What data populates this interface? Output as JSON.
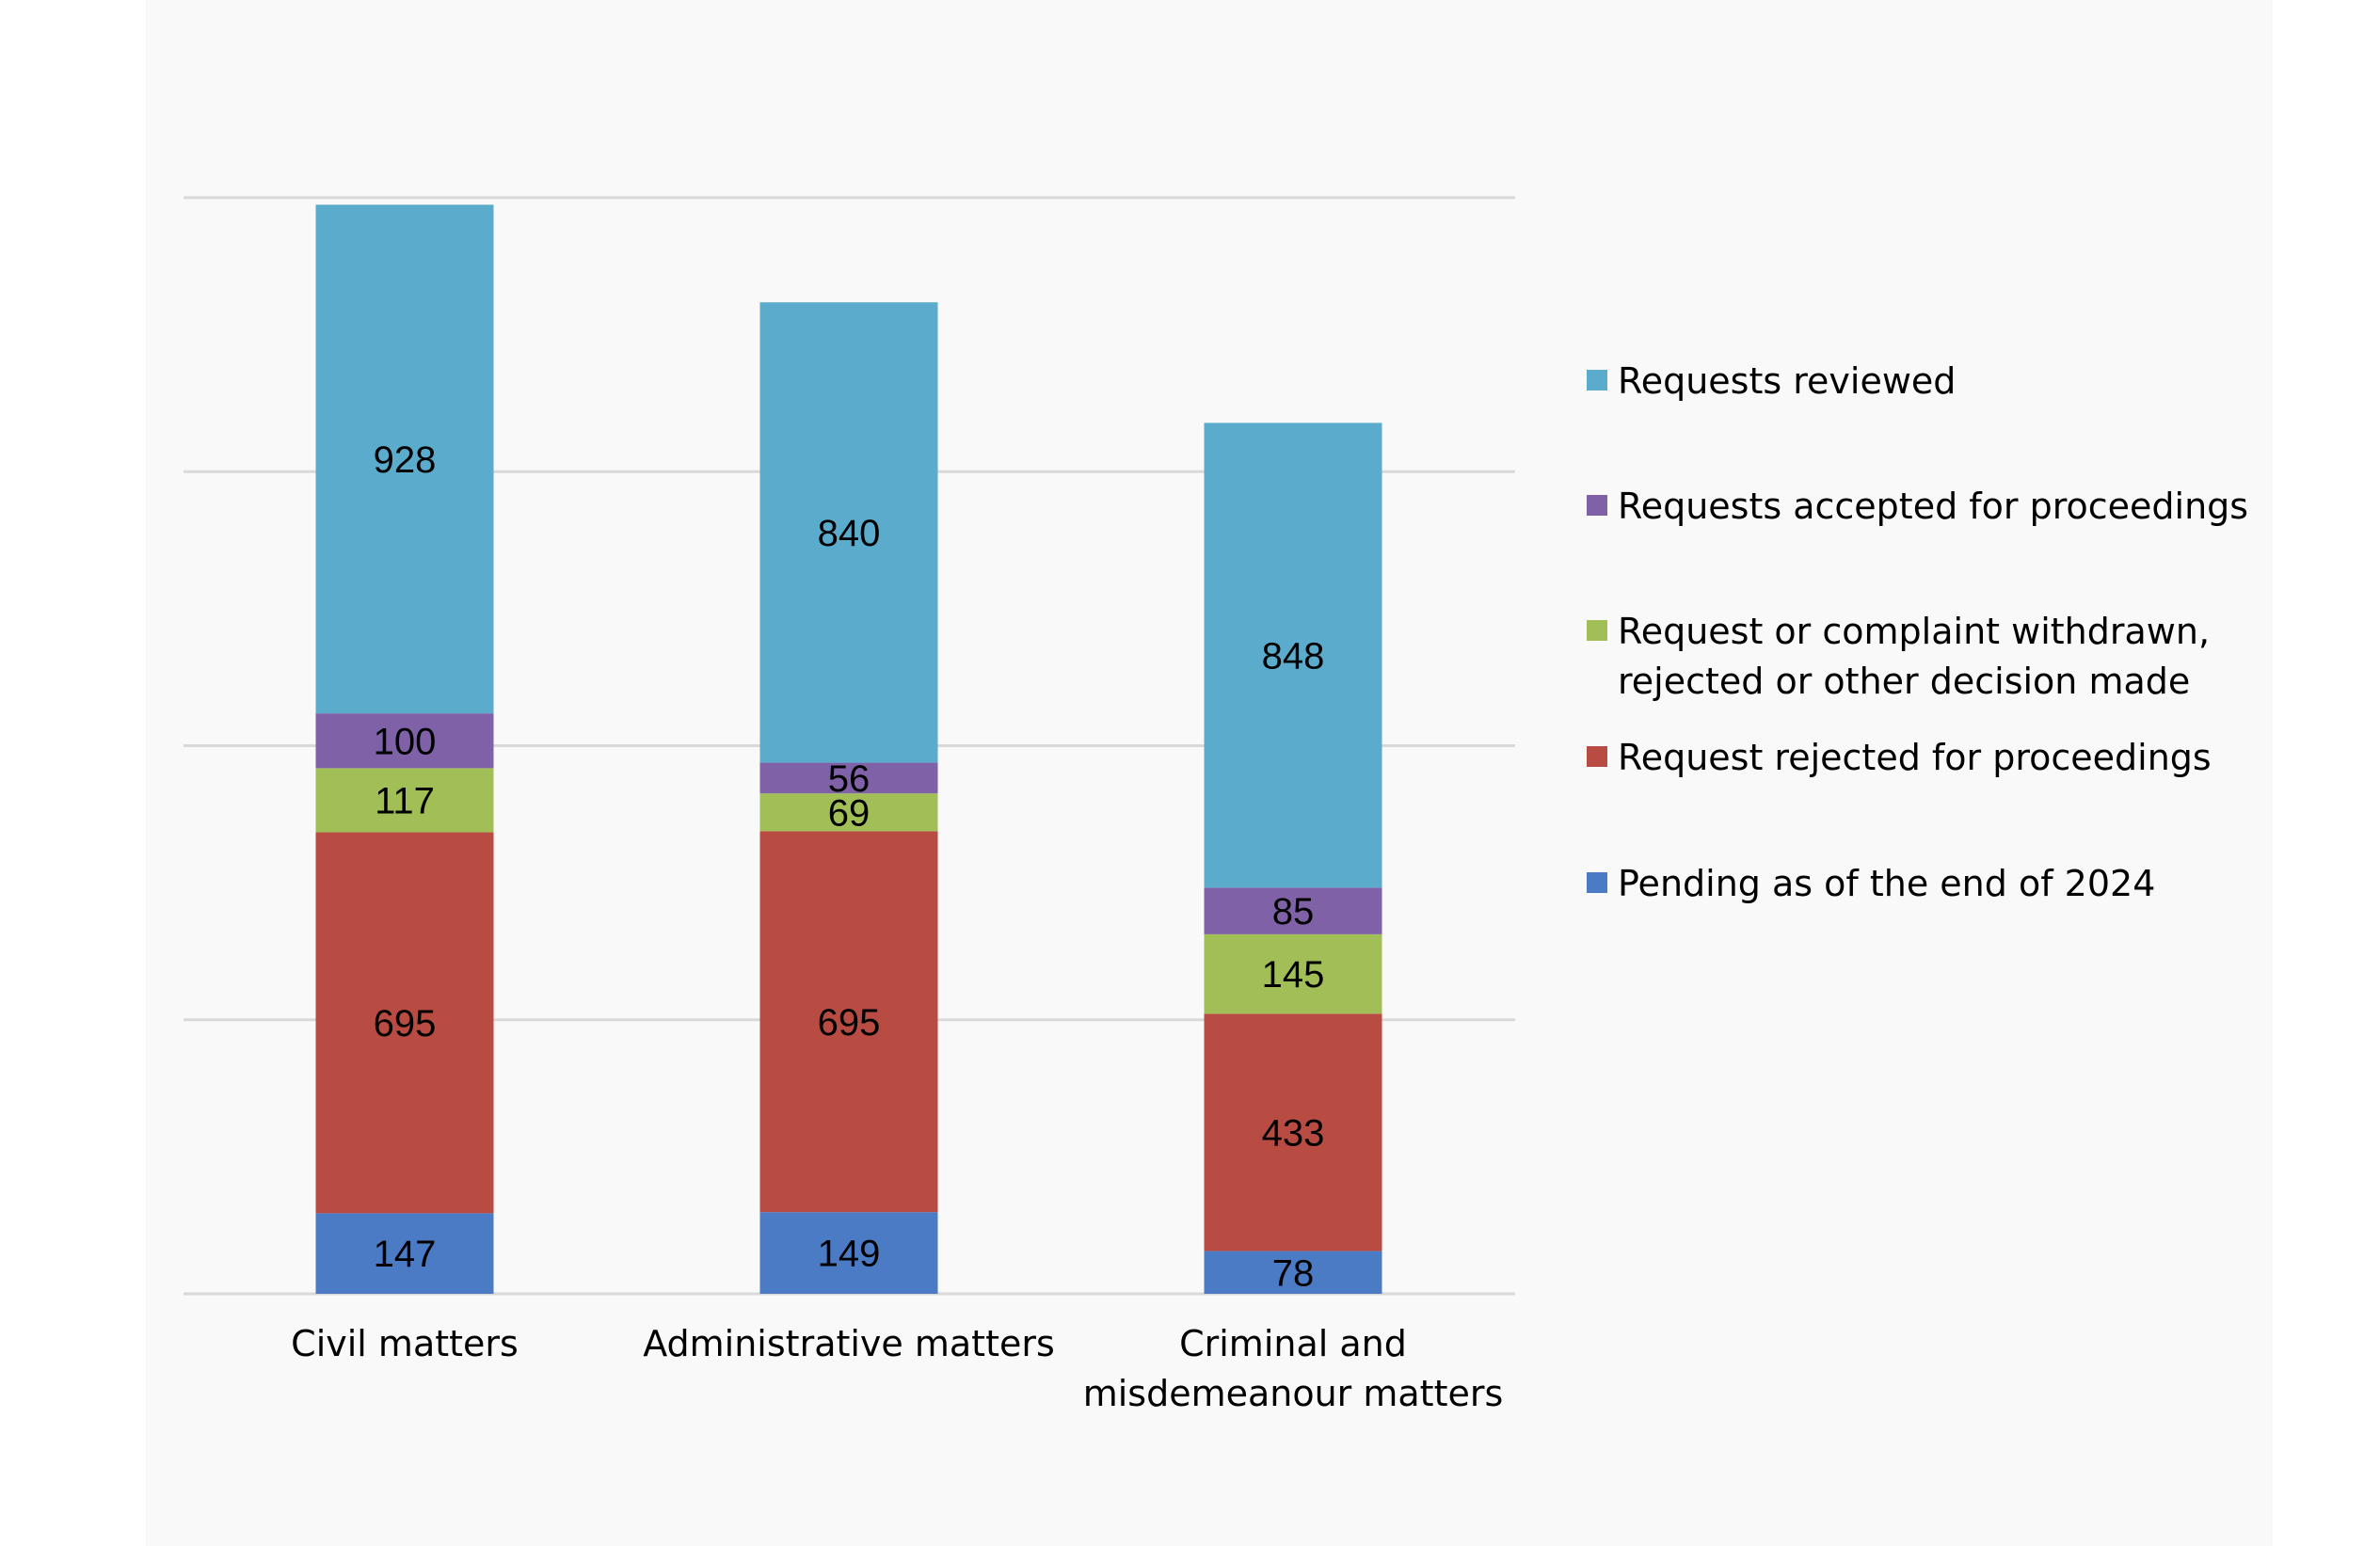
{
  "chart_data": {
    "type": "bar",
    "stacked": true,
    "title": "",
    "xlabel": "",
    "ylabel": "",
    "ylim": [
      0,
      2000
    ],
    "grid": true,
    "legend_position": "right",
    "categories": [
      [
        "Civil matters"
      ],
      [
        "Administrative matters"
      ],
      [
        "Criminal and",
        "misdemeanour matters"
      ]
    ],
    "series": [
      {
        "name": "Pending as of the end of 2024",
        "color": "#4a7bc4",
        "values": [
          147,
          149,
          78
        ]
      },
      {
        "name": "Request rejected for proceedings",
        "color": "#b84c43",
        "values": [
          695,
          695,
          433
        ]
      },
      {
        "name": "Request or complaint withdrawn, rejected or other decision made",
        "legend_lines": [
          "Request or complaint withdrawn,",
          "rejected or other decision made"
        ],
        "color": "#a2bf57",
        "values": [
          117,
          69,
          145
        ]
      },
      {
        "name": "Requests accepted for proceedings",
        "color": "#7f61a8",
        "values": [
          100,
          56,
          85
        ]
      },
      {
        "name": "Requests reviewed",
        "color": "#5aabcc",
        "values": [
          928,
          840,
          848
        ]
      }
    ],
    "legend_order": [
      4,
      3,
      2,
      1,
      0
    ],
    "gridline_color": "#d9d9d9"
  }
}
